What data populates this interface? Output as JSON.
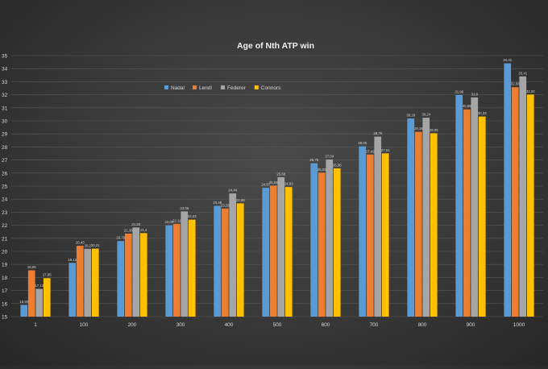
{
  "chart_data": {
    "type": "bar",
    "title": "Age of Nth ATP win",
    "xlabel": "",
    "ylabel": "",
    "ylim": [
      15,
      35
    ],
    "yticks": [
      "15",
      "16",
      "17",
      "18",
      "19",
      "20",
      "21",
      "22",
      "23",
      "24",
      "25",
      "26",
      "27",
      "28",
      "29",
      "30",
      "31",
      "32",
      "33",
      "34",
      "35"
    ],
    "grid": true,
    "legend_position": "top-left",
    "categories": [
      "1",
      "100",
      "200",
      "300",
      "400",
      "500",
      "600",
      "700",
      "800",
      "900",
      "1000"
    ],
    "series": [
      {
        "name": "Nadal",
        "color": "#5b9bd5",
        "values": [
          15.9,
          19.12,
          20.79,
          22.0,
          23.49,
          24.87,
          26.75,
          28.05,
          30.18,
          31.98,
          34.41
        ],
        "labels": [
          "15,90",
          "19,12",
          "20,79",
          "22,00",
          "23,49",
          "24,87",
          "26,75",
          "28,05",
          "30,18",
          "31,98",
          "34,41"
        ]
      },
      {
        "name": "Lendl",
        "color": "#ed7d31",
        "values": [
          18.55,
          20.43,
          21.36,
          22.11,
          23.28,
          25.04,
          26.03,
          27.42,
          29.16,
          30.88,
          32.58
        ],
        "labels": [
          "18,55",
          "20,43",
          "21,36",
          "22,11",
          "23,28",
          "25,04",
          "26,03",
          "27,42",
          "29,16",
          "30,88",
          "32,58"
        ]
      },
      {
        "name": "Federer",
        "color": "#a5a5a5",
        "values": [
          17.13,
          20.2,
          21.83,
          23.06,
          24.44,
          25.68,
          27.04,
          28.79,
          30.24,
          31.8,
          33.41
        ],
        "labels": [
          "17,13",
          "20,2",
          "21,83",
          "23,06",
          "24,44",
          "25,68",
          "27,04",
          "28,79",
          "30,24",
          "31,8",
          "33,41"
        ]
      },
      {
        "name": "Connors",
        "color": "#ffc000",
        "values": [
          17.95,
          20.21,
          21.4,
          22.43,
          23.68,
          24.93,
          26.36,
          27.51,
          29.05,
          30.33,
          32.02
        ],
        "labels": [
          "17,95",
          "20,21",
          "21,4",
          "22,43",
          "23,68",
          "24,93",
          "26,36",
          "27,51",
          "29,05",
          "30,33",
          "32,02"
        ]
      }
    ]
  }
}
